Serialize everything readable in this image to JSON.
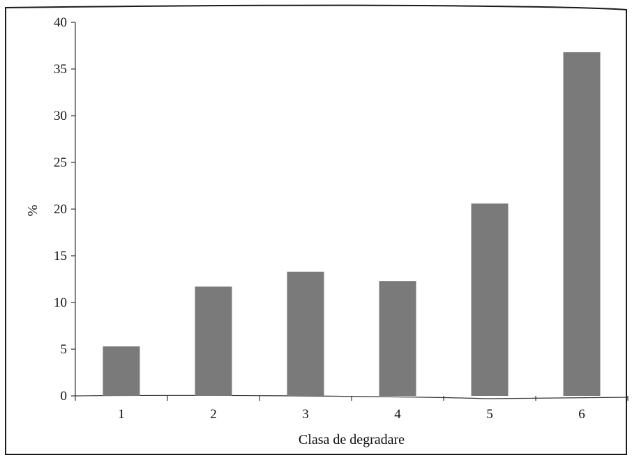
{
  "chart_data": {
    "type": "bar",
    "xlabel": "Clasa de degradare",
    "ylabel": "%",
    "categories": [
      "1",
      "2",
      "3",
      "4",
      "5",
      "6"
    ],
    "values": [
      5.3,
      11.7,
      13.3,
      12.3,
      20.6,
      36.8
    ],
    "ylim": [
      0,
      40
    ],
    "yticks": [
      "0",
      "5",
      "10",
      "15",
      "20",
      "25",
      "30",
      "35",
      "40"
    ],
    "grid": false,
    "bar_color": "#7a7a7a"
  }
}
